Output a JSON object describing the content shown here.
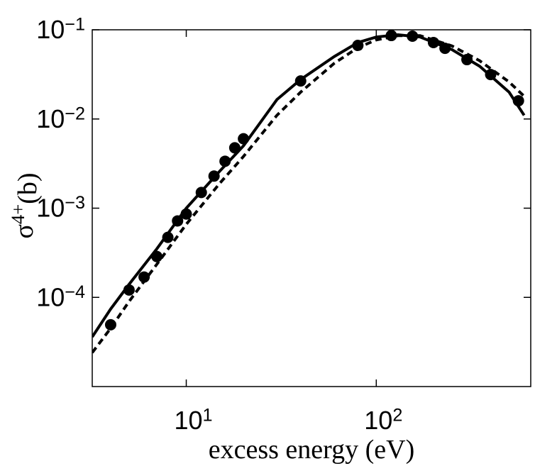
{
  "chart_data": {
    "type": "line",
    "x_label": "excess energy (eV)",
    "y_label": "σ^4+^(b)",
    "x_scale": "log",
    "y_scale": "log",
    "xlim": [
      3.2,
      650
    ],
    "ylim": [
      1e-05,
      0.1
    ],
    "xticks": [
      {
        "value": 10,
        "label": "10^1"
      },
      {
        "value": 100,
        "label": "10^2"
      }
    ],
    "yticks": [
      {
        "value": 0.0001,
        "label": "10^−4"
      },
      {
        "value": 0.001,
        "label": "10^−3"
      },
      {
        "value": 0.01,
        "label": "10^−2"
      },
      {
        "value": 0.1,
        "label": "10^−1"
      }
    ],
    "series": [
      {
        "style": "markers",
        "color": "#000000",
        "x": [
          4,
          5,
          6,
          7,
          8,
          9,
          10,
          12,
          14,
          16,
          18,
          20,
          40,
          80,
          120,
          155,
          200,
          230,
          300,
          400,
          560
        ],
        "values": [
          4.93e-05,
          0.000121,
          0.000169,
          0.000287,
          0.000471,
          0.00072,
          0.00086,
          0.0015,
          0.00229,
          0.00336,
          0.00475,
          0.006,
          0.0267,
          0.0668,
          0.0863,
          0.0848,
          0.072,
          0.062,
          0.0463,
          0.0315,
          0.016
        ]
      },
      {
        "style": "solid",
        "color": "#000000",
        "x": [
          3.2,
          4,
          5,
          7,
          10,
          15,
          20,
          30,
          40,
          60,
          80,
          100,
          130,
          170,
          250,
          350,
          500,
          600
        ],
        "values": [
          3.6e-05,
          7.4e-05,
          0.00014,
          0.00035,
          0.001,
          0.0026,
          0.005,
          0.0165,
          0.0277,
          0.05,
          0.072,
          0.083,
          0.088,
          0.083,
          0.06,
          0.039,
          0.02,
          0.011
        ]
      },
      {
        "style": "dashed",
        "color": "#000000",
        "x": [
          3.2,
          4,
          5,
          7,
          10,
          15,
          20,
          30,
          40,
          60,
          80,
          100,
          130,
          170,
          250,
          350,
          500,
          600
        ],
        "values": [
          2.4e-05,
          4.5e-05,
          9e-05,
          0.000235,
          0.00066,
          0.0019,
          0.0038,
          0.011,
          0.02,
          0.042,
          0.063,
          0.077,
          0.086,
          0.086,
          0.066,
          0.045,
          0.026,
          0.018
        ]
      }
    ]
  }
}
